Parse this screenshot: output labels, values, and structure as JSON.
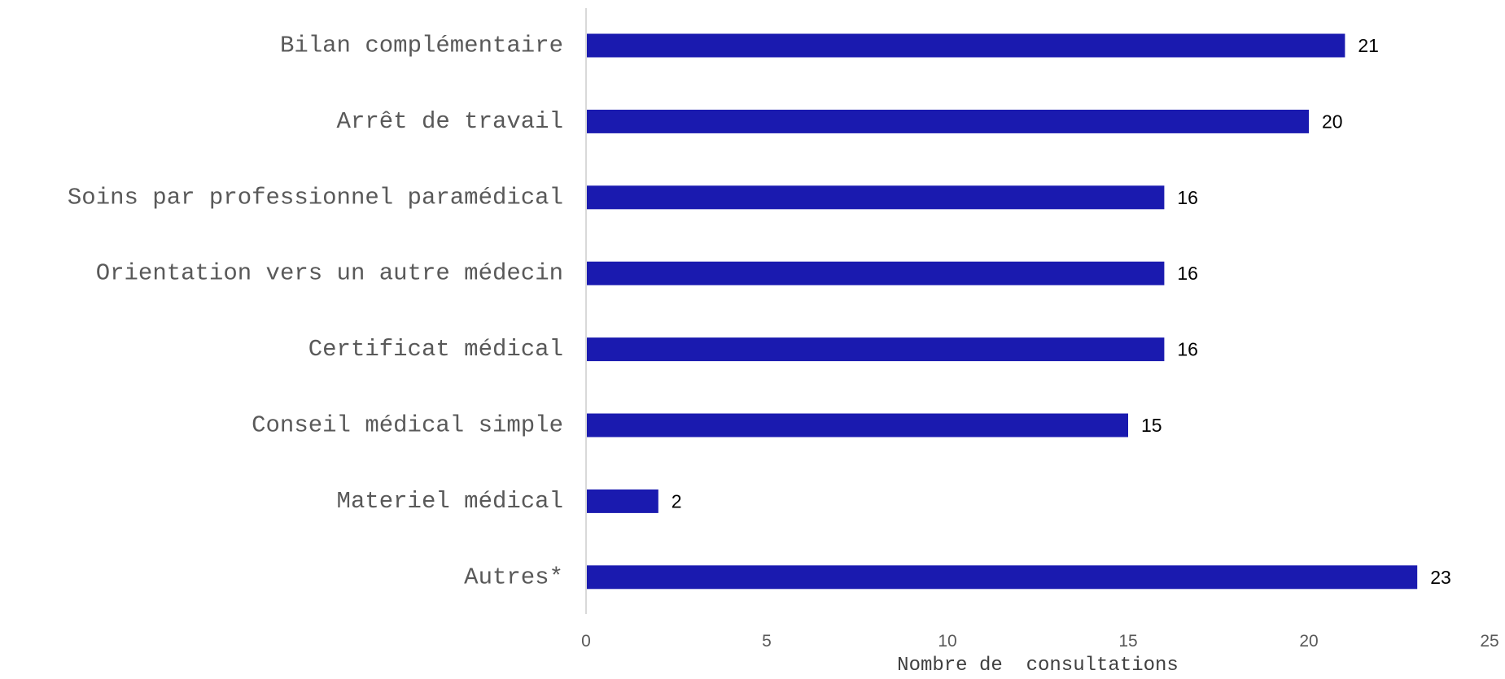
{
  "chart_data": {
    "type": "bar",
    "orientation": "horizontal",
    "categories": [
      "Bilan complémentaire",
      "Arrêt de travail",
      "Soins par professionnel paramédical",
      "Orientation vers un autre médecin",
      "Certificat médical",
      "Conseil médical simple",
      "Materiel médical",
      "Autres*"
    ],
    "values": [
      21,
      20,
      16,
      16,
      16,
      15,
      2,
      23
    ],
    "xlabel": "Nombre de  consultations",
    "ylabel": "",
    "xlim": [
      0,
      25
    ],
    "xticks": [
      0,
      5,
      10,
      15,
      20,
      25
    ],
    "data_labels": true,
    "grid": false,
    "legend": "none",
    "bar_color": "#1a1aaf"
  }
}
